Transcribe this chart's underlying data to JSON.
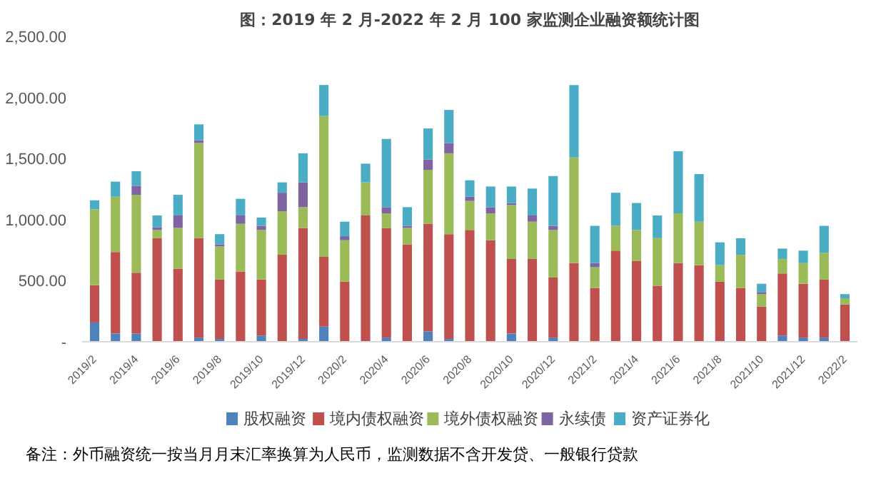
{
  "chart_data": {
    "type": "bar",
    "stacked": true,
    "title": "图：2019 年 2 月-2022 年 2 月 100 家监测企业融资额统计图",
    "categories": [
      "2019/2",
      null,
      "2019/4",
      null,
      "2019/6",
      null,
      "2019/8",
      null,
      "2019/10",
      null,
      "2019/12",
      null,
      "2020/2",
      null,
      "2020/4",
      null,
      "2020/6",
      null,
      "2020/8",
      null,
      "2020/10",
      null,
      "2020/12",
      null,
      "2021/2",
      null,
      "2021/4",
      null,
      "2021/6",
      null,
      "2021/8",
      null,
      "2021/10",
      null,
      "2021/12",
      null,
      "2022/2"
    ],
    "series": [
      {
        "name": "股权融资",
        "color": "#4f81bd",
        "values": [
          158,
          68,
          68,
          0,
          0,
          34,
          23,
          0,
          51,
          0,
          23,
          124,
          0,
          0,
          34,
          0,
          85,
          23,
          0,
          0,
          68,
          0,
          34,
          0,
          0,
          0,
          0,
          0,
          0,
          0,
          0,
          0,
          0,
          51,
          34,
          34,
          0
        ]
      },
      {
        "name": "境内债权融资",
        "color": "#c0504d",
        "values": [
          305,
          667,
          497,
          848,
          599,
          814,
          486,
          576,
          458,
          712,
          909,
          571,
          492,
          1034,
          898,
          797,
          881,
          858,
          915,
          831,
          610,
          678,
          491,
          644,
          441,
          746,
          661,
          458,
          644,
          627,
          492,
          441,
          288,
          508,
          441,
          475,
          305
        ]
      },
      {
        "name": "境外债权融资",
        "color": "#9bbb59",
        "values": [
          622,
          452,
          638,
          67,
          333,
          779,
          271,
          390,
          406,
          356,
          170,
          1153,
          339,
          271,
          119,
          135,
          441,
          662,
          238,
          220,
          441,
          305,
          390,
          865,
          169,
          203,
          254,
          390,
          407,
          356,
          135,
          271,
          102,
          119,
          169,
          220,
          51
        ]
      },
      {
        "name": "永续债",
        "color": "#8064a2",
        "values": [
          0,
          0,
          74,
          23,
          102,
          23,
          17,
          68,
          34,
          152,
          203,
          0,
          33,
          0,
          51,
          17,
          85,
          84,
          34,
          51,
          17,
          51,
          34,
          0,
          34,
          0,
          0,
          0,
          0,
          0,
          0,
          0,
          17,
          0,
          0,
          0,
          0
        ]
      },
      {
        "name": "资产证券化",
        "color": "#4bacc6",
        "values": [
          73,
          124,
          119,
          96,
          169,
          130,
          84,
          136,
          68,
          85,
          238,
          254,
          119,
          153,
          559,
          153,
          254,
          271,
          135,
          169,
          135,
          220,
          407,
          593,
          305,
          271,
          221,
          186,
          508,
          390,
          187,
          135,
          68,
          85,
          102,
          220,
          34
        ]
      }
    ],
    "ylim": [
      0,
      2500
    ],
    "yticks": [
      {
        "value": 0,
        "label": "-"
      },
      {
        "value": 500,
        "label": "500.00"
      },
      {
        "value": 1000,
        "label": "1,000.00"
      },
      {
        "value": 1500,
        "label": "1,500.00"
      },
      {
        "value": 2000,
        "label": "2,000.00"
      },
      {
        "value": 2500,
        "label": "2,500.00"
      }
    ],
    "grid": false,
    "legend": "bottom",
    "annotations": [
      "备注：外币融资统一按当月月末汇率换算为人民币，监测数据不含开发贷、一般银行贷款"
    ]
  }
}
